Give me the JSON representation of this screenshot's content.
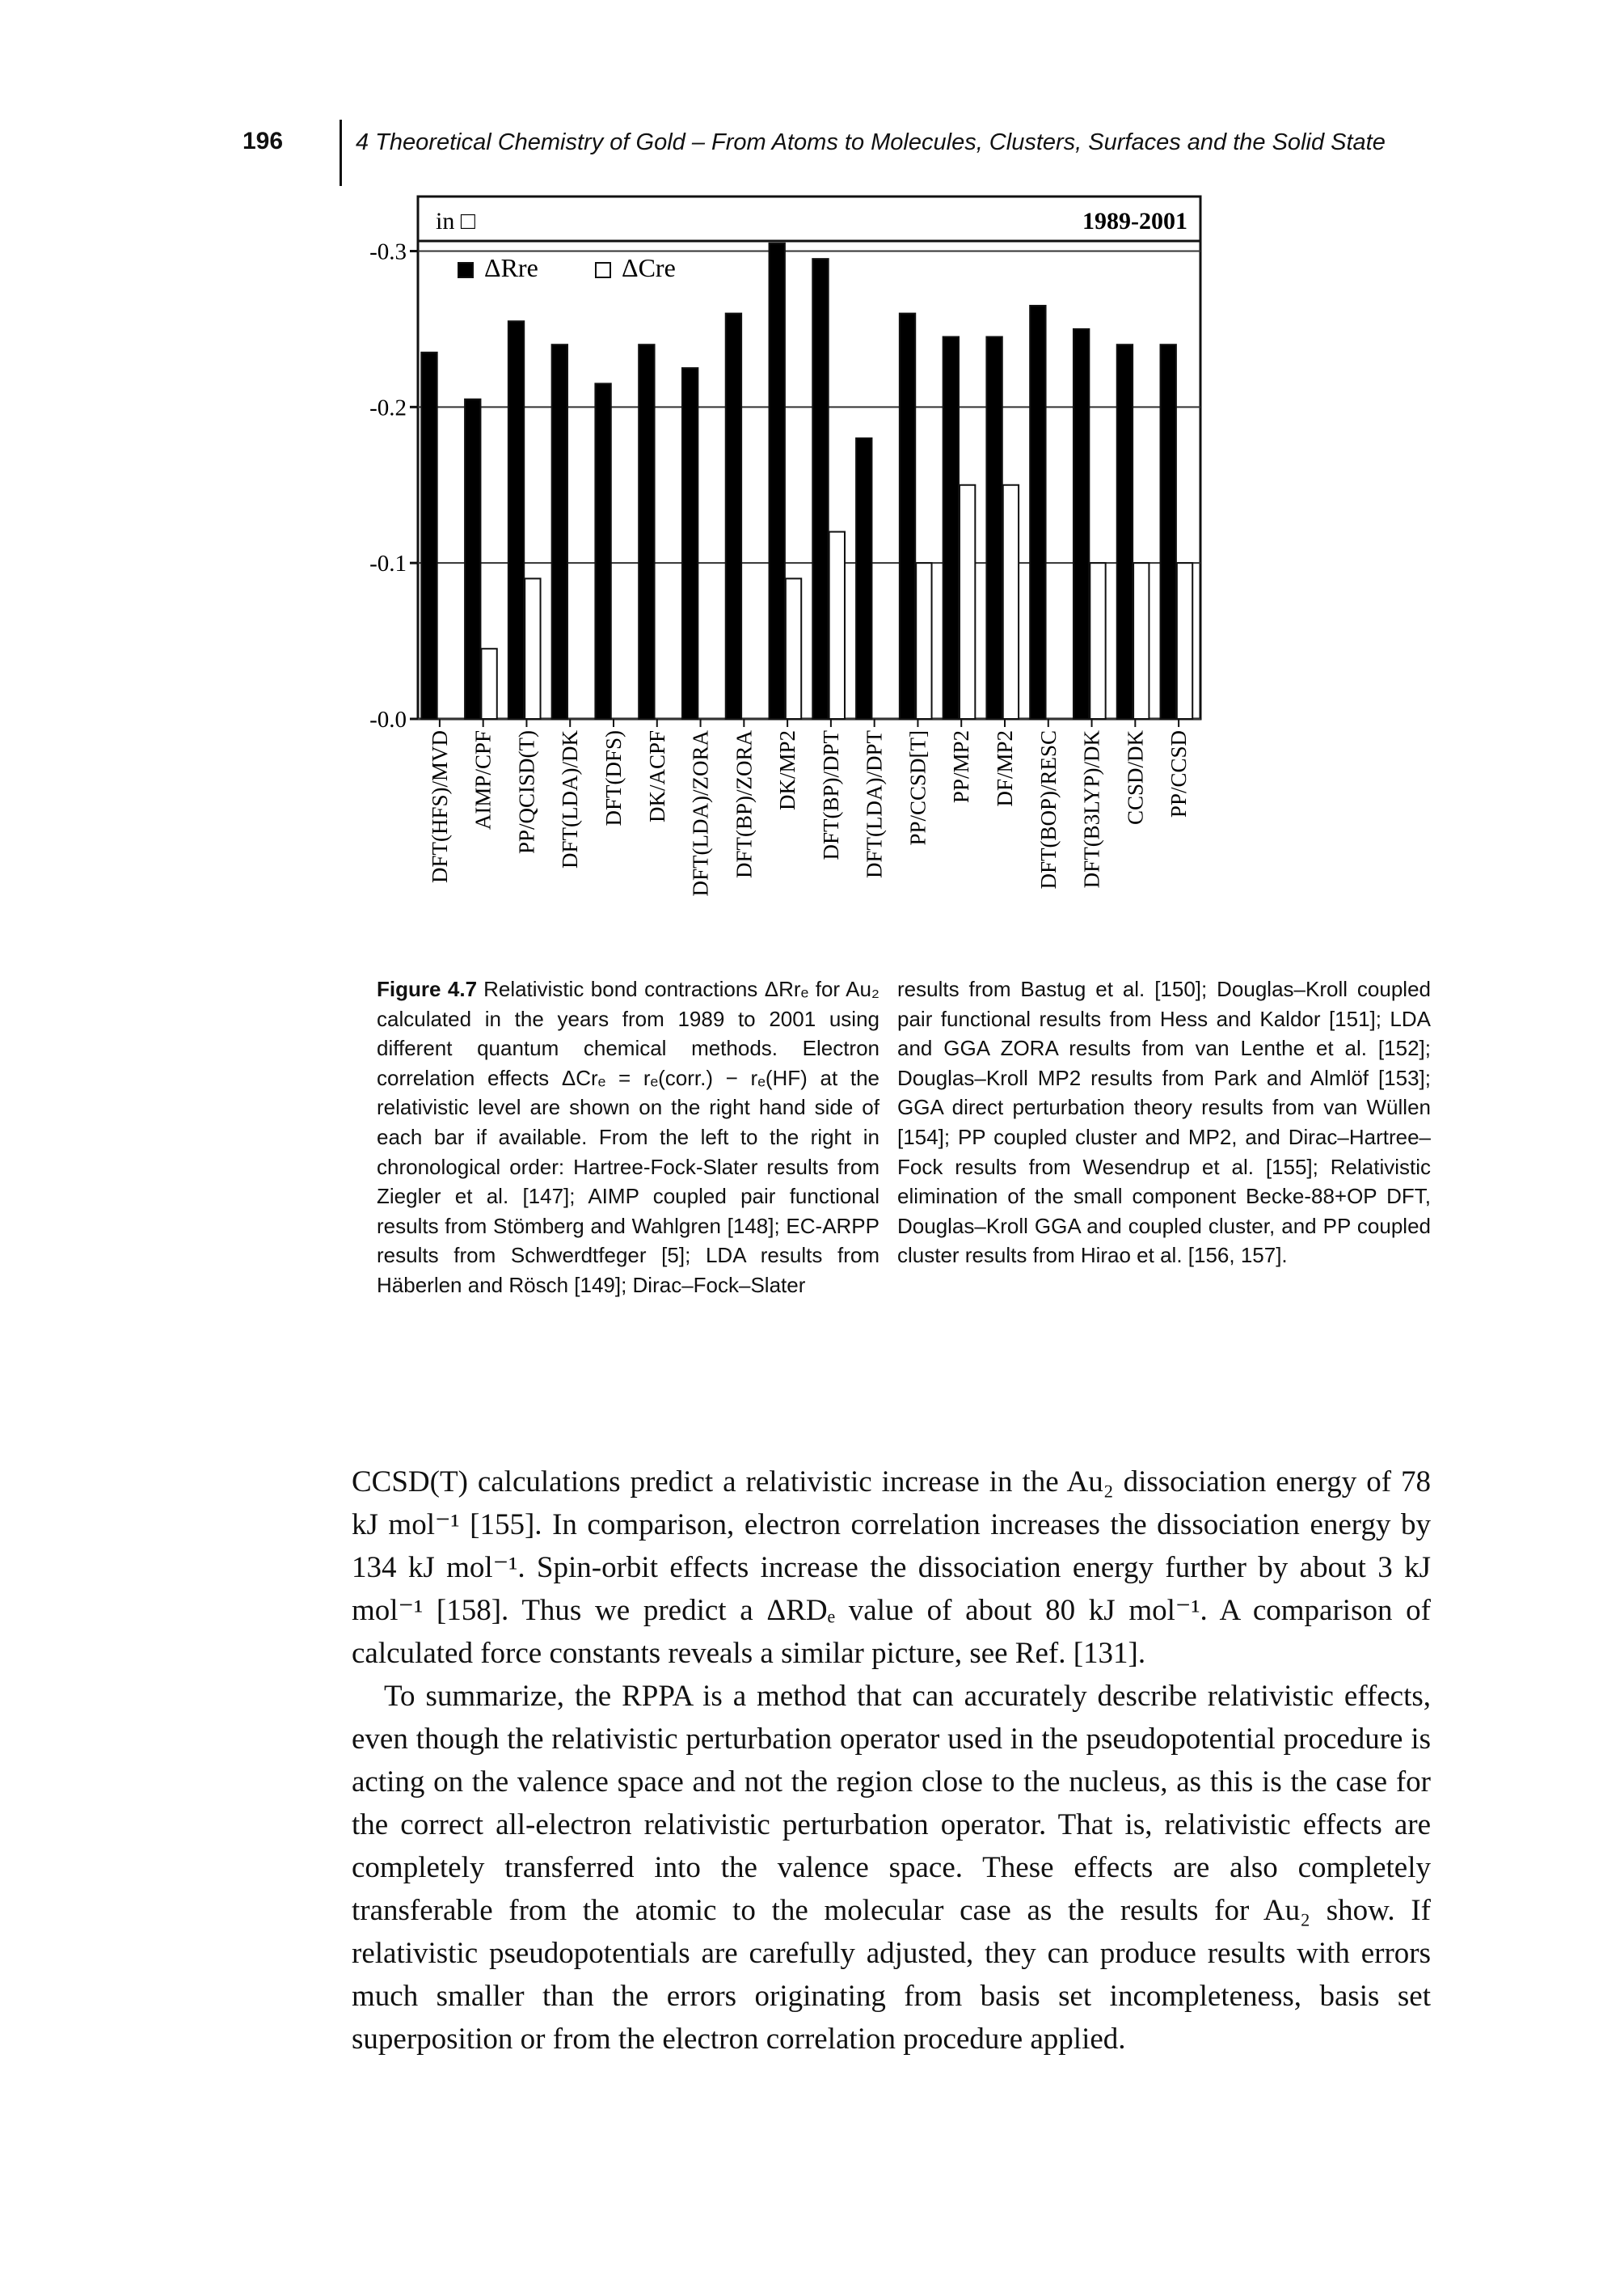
{
  "header": {
    "page": "196",
    "title": "4 Theoretical Chemistry of Gold – From Atoms to Molecules, Clusters, Surfaces and the Solid State"
  },
  "chart_data": {
    "type": "bar",
    "annotations": [
      "in □",
      "1989-2001"
    ],
    "categories": [
      "DFT(HFS)/MVD",
      "AIMP/CPF",
      "PP/QCISD(T)",
      "DFT(LDA)/DK",
      "DFT(DFS)",
      "DK/ACPF",
      "DFT(LDA)/ZORA",
      "DFT(BP)/ZORA",
      "DK/MP2",
      "DFT(BP)/DPT",
      "DFT(LDA)/DPT",
      "PP/CCSD[T]",
      "PP/MP2",
      "DF/MP2",
      "DFT(BOP)/RESC",
      "DFT(B3LYP)/DK",
      "CCSD/DK",
      "PP/CCSD"
    ],
    "series": [
      {
        "name": "ΔRre",
        "color": "#000000",
        "values": [
          -0.235,
          -0.205,
          -0.255,
          -0.24,
          -0.215,
          -0.24,
          -0.225,
          -0.26,
          -0.305,
          -0.295,
          -0.18,
          -0.26,
          -0.245,
          -0.245,
          -0.265,
          -0.25,
          -0.24,
          -0.24
        ]
      },
      {
        "name": "ΔCre",
        "color": "#ffffff",
        "values": [
          null,
          -0.045,
          -0.09,
          null,
          null,
          null,
          null,
          null,
          -0.09,
          -0.12,
          null,
          -0.1,
          -0.15,
          -0.15,
          null,
          -0.1,
          -0.1,
          -0.1
        ]
      }
    ],
    "ylim": [
      0,
      -0.335
    ],
    "yticks": [
      {
        "value": 0,
        "label": "-0.0"
      },
      -0.1,
      -0.2,
      -0.3
    ],
    "grid": true
  },
  "caption": {
    "label": "Figure 4.7",
    "left": "Relativistic bond contractions ΔRrₑ for Au₂ calculated in the years from 1989 to 2001 using different quantum chemical methods. Electron correlation effects ΔCrₑ = rₑ(corr.) − rₑ(HF) at the relativistic level are shown on the right hand side of each bar if available. From the left to the right in chronological order: Hartree-Fock-Slater results from Ziegler et al. [147]; AIMP coupled pair functional results from Stömberg and Wahlgren [148]; EC-ARPP results from Schwerdtfeger [5]; LDA results from Häberlen and Rösch [149]; Dirac–Fock–Slater",
    "right": "results from Bastug et al. [150]; Douglas–Kroll coupled pair functional results from Hess and Kaldor [151]; LDA and GGA ZORA results from van Lenthe et al. [152]; Douglas–Kroll MP2 results from Park and Almlöf [153]; GGA direct perturbation theory results from van Wüllen [154]; PP coupled cluster and MP2, and Dirac–Hartree–Fock results from Wesendrup et al. [155]; Relativistic elimination of the small component Becke-88+OP DFT, Douglas–Kroll GGA and coupled cluster, and PP coupled cluster results from Hirao et al. [156, 157]."
  },
  "body": {
    "paragraphs": [
      "CCSD(T) calculations predict a relativistic increase in the Au₂ dissociation energy of 78 kJ mol⁻¹ [155]. In comparison, electron correlation increases the dissociation energy by 134 kJ mol⁻¹. Spin-orbit effects increase the dissociation energy further by about 3 kJ mol⁻¹ [158]. Thus we predict a ΔRDₑ value of about 80 kJ mol⁻¹. A comparison of calculated force constants reveals a similar picture, see Ref. [131].",
      "To summarize, the RPPA is a method that can accurately describe relativistic effects, even though the relativistic perturbation operator used in the pseudopotential procedure is acting on the valence space and not the region close to the nucleus, as this is the case for the correct all-electron relativistic perturbation operator. That is, relativistic effects are completely transferred into the valence space. These effects are also completely transferable from the atomic to the molecular case as the results for Au₂ show. If relativistic pseudopotentials are carefully adjusted, they can produce results with errors much smaller than the errors originating from basis set incompleteness, basis set superposition or from the electron correlation procedure applied."
    ]
  }
}
